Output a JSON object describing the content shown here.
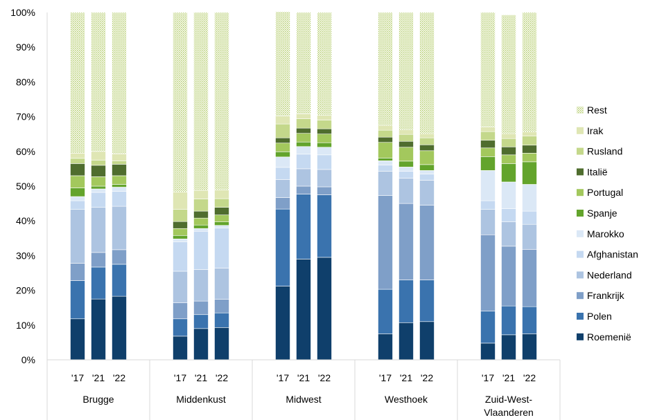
{
  "chart_data": {
    "type": "bar",
    "stacked": true,
    "title": "",
    "xlabel": "",
    "ylabel": "",
    "ylim": [
      0,
      100
    ],
    "y_ticks": [
      "0%",
      "10%",
      "20%",
      "30%",
      "40%",
      "50%",
      "60%",
      "70%",
      "80%",
      "90%",
      "100%"
    ],
    "grid": false,
    "legend_position": "right",
    "groups": [
      {
        "name": "Brugge",
        "name_lines": [
          "Brugge"
        ],
        "years": [
          "'17",
          "'21",
          "'22"
        ]
      },
      {
        "name": "Middenkust",
        "name_lines": [
          "Middenkust"
        ],
        "years": [
          "'17",
          "'21",
          "'22"
        ]
      },
      {
        "name": "Midwest",
        "name_lines": [
          "Midwest"
        ],
        "years": [
          "'17",
          "'21",
          "'22"
        ]
      },
      {
        "name": "Westhoek",
        "name_lines": [
          "Westhoek"
        ],
        "years": [
          "'17",
          "'21",
          "'22"
        ]
      },
      {
        "name": "Zuid-West-Vlaanderen",
        "name_lines": [
          "Zuid-West-",
          "Vlaanderen"
        ],
        "years": [
          "'17",
          "'21",
          "'22"
        ]
      }
    ],
    "series": [
      {
        "name": "Roemenië",
        "color": "#0f3f6b",
        "values": [
          11.8,
          17.5,
          18.3,
          6.8,
          9.0,
          9.3,
          21.2,
          29.0,
          29.5,
          7.5,
          10.7,
          11.0,
          4.8,
          7.2,
          7.5
        ]
      },
      {
        "name": "Polen",
        "color": "#3a73ae",
        "values": [
          11.0,
          9.2,
          9.2,
          5.0,
          4.0,
          4.2,
          22.2,
          18.7,
          18.0,
          12.8,
          12.3,
          12.0,
          9.2,
          8.3,
          7.8
        ]
      },
      {
        "name": "Frankrijk",
        "color": "#7f9fc8",
        "values": [
          5.0,
          4.2,
          4.2,
          4.6,
          3.9,
          3.9,
          3.3,
          2.3,
          2.3,
          27.0,
          22.0,
          21.5,
          22.0,
          17.2,
          16.5
        ]
      },
      {
        "name": "Nederland",
        "color": "#adc4e1",
        "values": [
          15.5,
          13.0,
          12.5,
          9.1,
          9.1,
          9.0,
          5.2,
          5.0,
          5.0,
          7.0,
          7.3,
          7.2,
          7.3,
          7.0,
          7.2
        ]
      },
      {
        "name": "Afghanistan",
        "color": "#c5d9f1",
        "values": [
          2.5,
          4.3,
          4.3,
          8.5,
          11.0,
          11.5,
          3.5,
          4.2,
          4.2,
          1.8,
          2.0,
          1.8,
          2.5,
          3.8,
          3.8
        ]
      },
      {
        "name": "Marokko",
        "color": "#dbe8f6",
        "values": [
          1.2,
          1.0,
          1.2,
          0.8,
          0.8,
          0.8,
          3.0,
          2.2,
          2.2,
          1.2,
          1.2,
          1.0,
          8.7,
          7.7,
          7.7
        ]
      },
      {
        "name": "Spanje",
        "color": "#63a42c",
        "values": [
          2.5,
          0.8,
          0.8,
          1.0,
          1.0,
          1.0,
          1.5,
          1.3,
          1.3,
          0.8,
          1.7,
          1.7,
          4.0,
          5.3,
          6.5
        ]
      },
      {
        "name": "Portugal",
        "color": "#a3c85d",
        "values": [
          3.5,
          2.7,
          2.5,
          2.0,
          2.0,
          2.0,
          2.5,
          2.5,
          2.5,
          4.5,
          4.0,
          4.0,
          2.5,
          2.5,
          2.5
        ]
      },
      {
        "name": "Italië",
        "color": "#4f6d2e",
        "values": [
          3.5,
          3.3,
          3.3,
          2.0,
          2.0,
          2.2,
          1.5,
          1.5,
          1.5,
          1.5,
          1.7,
          1.7,
          2.2,
          2.3,
          2.3
        ]
      },
      {
        "name": "Rusland",
        "color": "#c4d88b",
        "values": [
          1.5,
          1.5,
          1.0,
          3.5,
          3.5,
          2.5,
          4.0,
          2.7,
          2.5,
          2.0,
          2.0,
          2.0,
          2.5,
          2.4,
          2.6
        ]
      },
      {
        "name": "Irak",
        "color": "#dfe6b4",
        "values": [
          1.5,
          2.5,
          2.0,
          5.0,
          2.5,
          2.5,
          2.3,
          1.4,
          1.4,
          1.4,
          1.3,
          1.2,
          1.3,
          1.4,
          1.2
        ]
      },
      {
        "name": "Rest",
        "color": "#c9dc96",
        "pattern": "dotted",
        "values": [
          40.5,
          40.0,
          40.7,
          51.7,
          51.2,
          51.1,
          30.0,
          29.2,
          29.6,
          32.5,
          33.8,
          34.9,
          33.0,
          34.2,
          34.4
        ]
      }
    ]
  }
}
